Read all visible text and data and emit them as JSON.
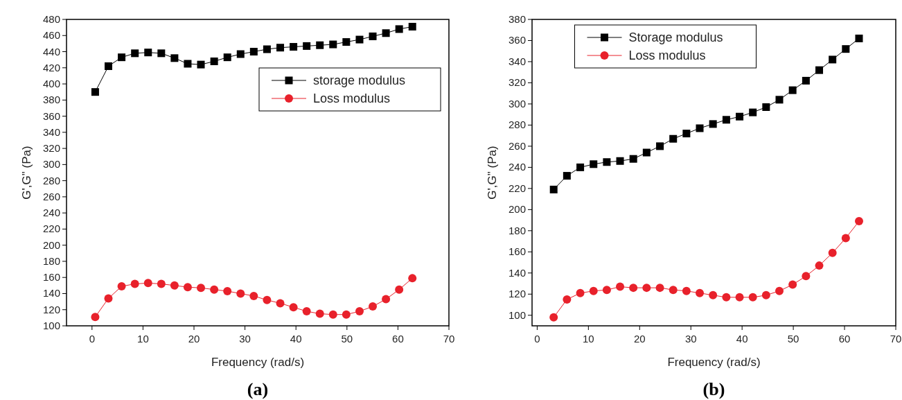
{
  "chart_data": [
    {
      "type": "line",
      "title": "(a)",
      "xlabel": "Frequency (rad/s)",
      "ylabel": "G',G\" (Pa)",
      "xlim": [
        -5,
        70
      ],
      "xticks": [
        0,
        10,
        20,
        30,
        40,
        50,
        60,
        70
      ],
      "ylim": [
        100,
        480
      ],
      "yticks": [
        100,
        120,
        140,
        160,
        180,
        200,
        220,
        240,
        260,
        280,
        300,
        320,
        340,
        360,
        380,
        400,
        420,
        440,
        460,
        480
      ],
      "legend": "top right",
      "line_style": "solid",
      "series": [
        {
          "name": "storage modulus",
          "color": "#000000",
          "marker": "square",
          "x": [
            0.63,
            3.22,
            5.81,
            8.41,
            11.0,
            13.59,
            16.18,
            18.77,
            21.36,
            23.96,
            26.55,
            29.14,
            31.73,
            34.32,
            36.92,
            39.51,
            42.1,
            44.69,
            47.28,
            49.87,
            52.47,
            55.06,
            57.65,
            60.24,
            62.83
          ],
          "values": [
            390,
            422,
            433,
            438,
            439,
            438,
            432,
            425,
            424,
            428,
            433,
            437,
            440,
            443,
            445,
            446,
            447,
            448,
            449,
            452,
            455,
            459,
            463,
            468,
            471
          ]
        },
        {
          "name": "Loss modulus",
          "color": "#e8212b",
          "marker": "circle",
          "x": [
            0.63,
            3.22,
            5.81,
            8.41,
            11.0,
            13.59,
            16.18,
            18.77,
            21.36,
            23.96,
            26.55,
            29.14,
            31.73,
            34.32,
            36.92,
            39.51,
            42.1,
            44.69,
            47.28,
            49.87,
            52.47,
            55.06,
            57.65,
            60.24,
            62.83
          ],
          "values": [
            111,
            134,
            149,
            152,
            153,
            152,
            150,
            148,
            147,
            145,
            143,
            140,
            137,
            132,
            128,
            123,
            118,
            115,
            114,
            114,
            118,
            124,
            133,
            145,
            159
          ]
        }
      ]
    },
    {
      "type": "line",
      "title": "(b)",
      "xlabel": "Frequency (rad/s)",
      "ylabel": "G',G\" (Pa)",
      "xlim": [
        -1,
        70
      ],
      "xticks": [
        0,
        10,
        20,
        30,
        40,
        50,
        60,
        70
      ],
      "ylim": [
        90,
        380
      ],
      "yticks": [
        100,
        120,
        140,
        160,
        180,
        200,
        220,
        240,
        260,
        280,
        300,
        320,
        340,
        360,
        380
      ],
      "legend": "top",
      "line_style": "solid",
      "series": [
        {
          "name": "Storage modulus",
          "color": "#000000",
          "marker": "square",
          "x": [
            3.22,
            5.81,
            8.41,
            11.0,
            13.59,
            16.18,
            18.77,
            21.36,
            23.96,
            26.55,
            29.14,
            31.73,
            34.32,
            36.92,
            39.51,
            42.1,
            44.69,
            47.28,
            49.87,
            52.47,
            55.06,
            57.65,
            60.24,
            62.83
          ],
          "values": [
            219,
            232,
            240,
            243,
            245,
            246,
            248,
            254,
            260,
            267,
            272,
            277,
            281,
            285,
            288,
            292,
            297,
            304,
            313,
            322,
            332,
            342,
            352,
            362
          ]
        },
        {
          "name": "Loss modulus",
          "color": "#e8212b",
          "marker": "circle",
          "x": [
            3.22,
            5.81,
            8.41,
            11.0,
            13.59,
            16.18,
            18.77,
            21.36,
            23.96,
            26.55,
            29.14,
            31.73,
            34.32,
            36.92,
            39.51,
            42.1,
            44.69,
            47.28,
            49.87,
            52.47,
            55.06,
            57.65,
            60.24,
            62.83
          ],
          "values": [
            98,
            115,
            121,
            123,
            124,
            127,
            126,
            126,
            126,
            124,
            123,
            121,
            119,
            117,
            117,
            117,
            119,
            123,
            129,
            137,
            147,
            159,
            173,
            189
          ]
        }
      ]
    }
  ]
}
